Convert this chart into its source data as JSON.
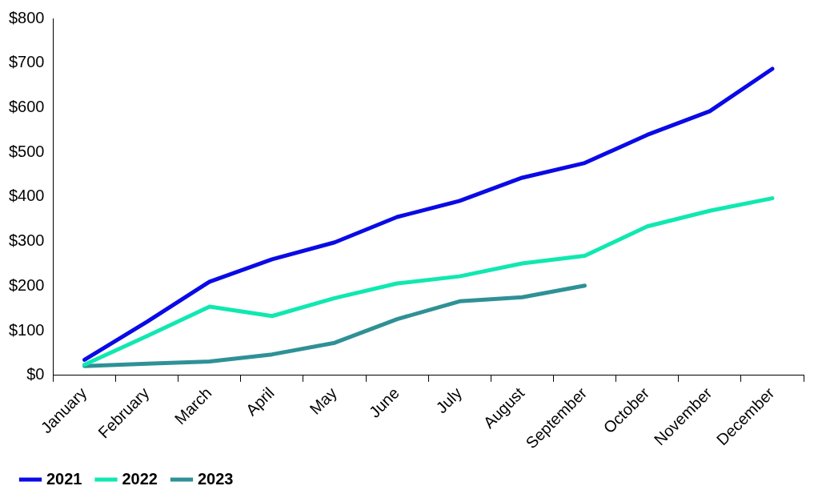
{
  "chart_data": {
    "type": "line",
    "categories": [
      "January",
      "February",
      "March",
      "April",
      "May",
      "June",
      "July",
      "August",
      "September",
      "October",
      "November",
      "December"
    ],
    "series": [
      {
        "name": "2021",
        "color": "#0a0ae6",
        "values": [
          35,
          120,
          210,
          260,
          298,
          355,
          391,
          443,
          476,
          539,
          592,
          687
        ]
      },
      {
        "name": "2022",
        "color": "#10e8b0",
        "values": [
          24,
          88,
          154,
          133,
          173,
          206,
          222,
          251,
          268,
          334,
          369,
          397
        ]
      },
      {
        "name": "2023",
        "color": "#2e9196",
        "values": [
          21,
          26,
          31,
          47,
          73,
          126,
          166,
          175,
          201,
          null,
          null,
          null
        ]
      }
    ],
    "ylim": [
      0,
      800
    ],
    "yticks": [
      {
        "value": 0,
        "label": "$0"
      },
      {
        "value": 100,
        "label": "$100"
      },
      {
        "value": 200,
        "label": "$200"
      },
      {
        "value": 300,
        "label": "$300"
      },
      {
        "value": 400,
        "label": "$400"
      },
      {
        "value": 500,
        "label": "$500"
      },
      {
        "value": 600,
        "label": "$600"
      },
      {
        "value": 700,
        "label": "$700"
      },
      {
        "value": 800,
        "label": "$800"
      }
    ],
    "grid": false,
    "legend": "bottom left",
    "marker": "none",
    "line_style": "solid"
  }
}
